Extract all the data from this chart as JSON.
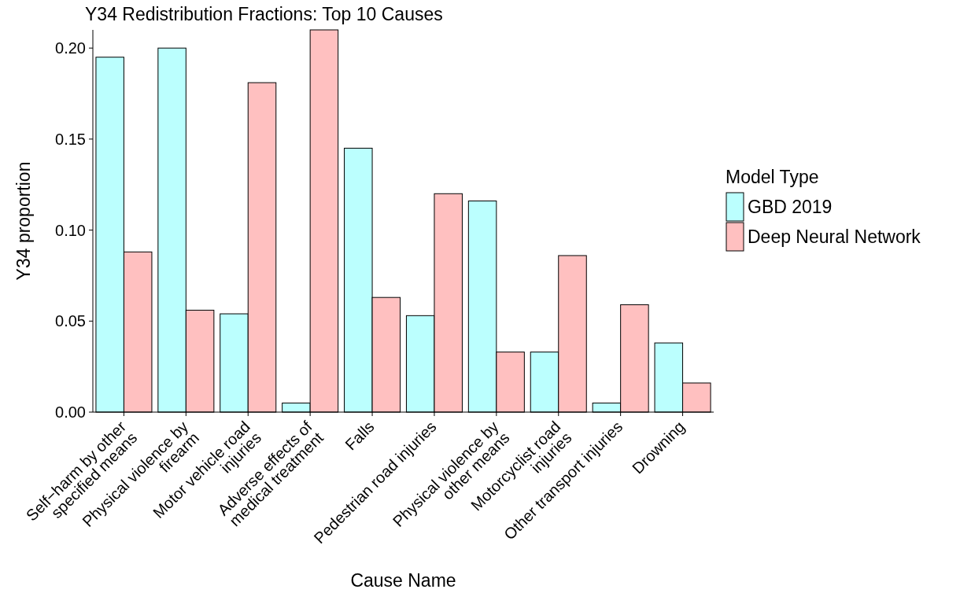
{
  "chart_data": {
    "type": "bar",
    "title": "Y34 Redistribution Fractions: Top 10 Causes",
    "xlabel": "Cause Name",
    "ylabel": "Y34 proportion",
    "legend_title": "Model Type",
    "categories": [
      "Self−harm by other\nspecified means",
      "Physical violence by\nfirearm",
      "Motor vehicle road\ninjuries",
      "Adverse effects of\nmedical treatment",
      "Falls",
      "Pedestrian road injuries",
      "Physical violence by\nother means",
      "Motorcyclist road\ninjuries",
      "Other transport injuries",
      "Drowning"
    ],
    "series": [
      {
        "name": "GBD 2019",
        "color": "#bbfffe",
        "values": [
          0.195,
          0.2,
          0.054,
          0.005,
          0.145,
          0.053,
          0.116,
          0.033,
          0.005,
          0.038
        ]
      },
      {
        "name": "Deep Neural Network",
        "color": "#ffc0c0",
        "values": [
          0.088,
          0.056,
          0.181,
          0.21,
          0.063,
          0.12,
          0.033,
          0.086,
          0.059,
          0.016
        ]
      }
    ],
    "ylim": [
      0,
      0.21
    ],
    "yticks": [
      {
        "value": 0,
        "label": "0.00"
      },
      {
        "value": 0.05,
        "label": "0.05"
      },
      {
        "value": 0.1,
        "label": "0.10"
      },
      {
        "value": 0.15,
        "label": "0.15"
      },
      {
        "value": 0.2,
        "label": "0.20"
      }
    ],
    "grid": false,
    "legend": "right"
  }
}
